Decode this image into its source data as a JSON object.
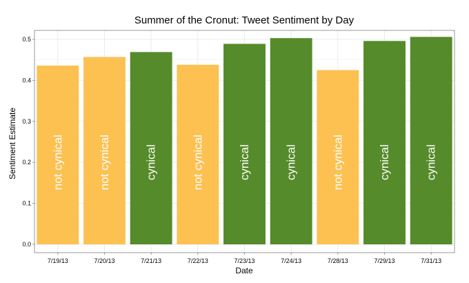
{
  "chart_data": {
    "type": "bar",
    "title": "Summer of the Cronut: Tweet Sentiment by Day",
    "xlabel": "Date",
    "ylabel": "Sentiment Estimate",
    "ylim": [
      0,
      0.5
    ],
    "yticks": [
      "0.0",
      "0.1",
      "0.2",
      "0.3",
      "0.4",
      "0.5"
    ],
    "grid": true,
    "categories": [
      "7/19/13",
      "7/20/13",
      "7/21/13",
      "7/22/13",
      "7/23/13",
      "7/24/13",
      "7/28/13",
      "7/29/13",
      "7/31/13"
    ],
    "values": [
      0.436,
      0.457,
      0.469,
      0.438,
      0.489,
      0.503,
      0.425,
      0.496,
      0.506
    ],
    "bar_labels": [
      "not cynical",
      "not cynical",
      "cynical",
      "not cynical",
      "cynical",
      "cynical",
      "not cynical",
      "cynical",
      "cynical"
    ],
    "colors": {
      "not cynical": "#FDC152",
      "cynical": "#558B2A"
    },
    "panel_background": "#ffffff",
    "grid_color": "#ebebeb"
  }
}
